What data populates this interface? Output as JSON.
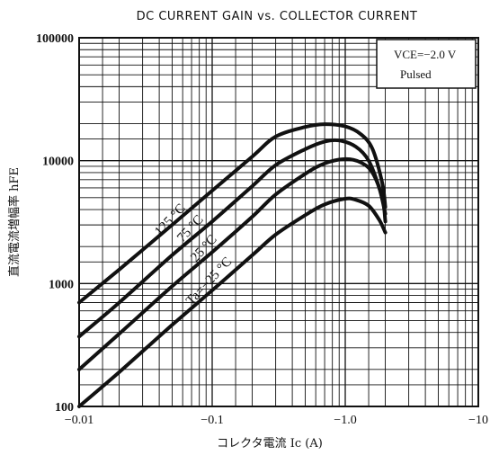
{
  "chart_data": {
    "type": "line",
    "title": "DC CURRENT GAIN vs. COLLECTOR CURRENT",
    "xlabel": "コレクタ電流 Ic (A)",
    "ylabel": "直流電流増幅率 hFE",
    "xscale": "log",
    "yscale": "log",
    "xlim": [
      -0.01,
      -10
    ],
    "ylim": [
      100,
      100000
    ],
    "x_ticks": [
      "−0.01",
      "−0.1",
      "−1.0",
      "−10"
    ],
    "y_ticks": [
      "100",
      "1000",
      "10000",
      "100000"
    ],
    "grid": true,
    "legend": {
      "placement": "top-right",
      "lines": [
        "VCE=−2.0 V",
        "Pulsed"
      ]
    },
    "series": [
      {
        "name": "125 °C",
        "x": [
          -0.01,
          -0.02,
          -0.05,
          -0.1,
          -0.2,
          -0.3,
          -0.5,
          -0.7,
          -1.0,
          -1.3,
          -1.6,
          -1.9,
          -2.0
        ],
        "y": [
          700,
          1300,
          3000,
          5700,
          10800,
          15700,
          18800,
          19800,
          19000,
          16500,
          12500,
          6500,
          4200
        ]
      },
      {
        "name": "75 °C",
        "x": [
          -0.01,
          -0.02,
          -0.05,
          -0.1,
          -0.2,
          -0.3,
          -0.5,
          -0.7,
          -0.9,
          -1.2,
          -1.5,
          -1.8,
          -2.0
        ],
        "y": [
          370,
          700,
          1700,
          3200,
          6200,
          9200,
          12400,
          14300,
          14600,
          13000,
          10000,
          6000,
          3700
        ]
      },
      {
        "name": "25 °C",
        "x": [
          -0.01,
          -0.02,
          -0.05,
          -0.1,
          -0.2,
          -0.3,
          -0.5,
          -0.7,
          -1.0,
          -1.3,
          -1.6,
          -1.9,
          -2.0
        ],
        "y": [
          200,
          390,
          950,
          1800,
          3500,
          5300,
          7800,
          9500,
          10300,
          9700,
          8000,
          5000,
          3200
        ]
      },
      {
        "name": "Ta=−25 °C",
        "x": [
          -0.01,
          -0.02,
          -0.05,
          -0.1,
          -0.2,
          -0.3,
          -0.5,
          -0.7,
          -1.0,
          -1.2,
          -1.5,
          -1.8,
          -2.0
        ],
        "y": [
          100,
          190,
          460,
          880,
          1700,
          2500,
          3600,
          4400,
          4900,
          4800,
          4300,
          3300,
          2600
        ]
      }
    ]
  }
}
